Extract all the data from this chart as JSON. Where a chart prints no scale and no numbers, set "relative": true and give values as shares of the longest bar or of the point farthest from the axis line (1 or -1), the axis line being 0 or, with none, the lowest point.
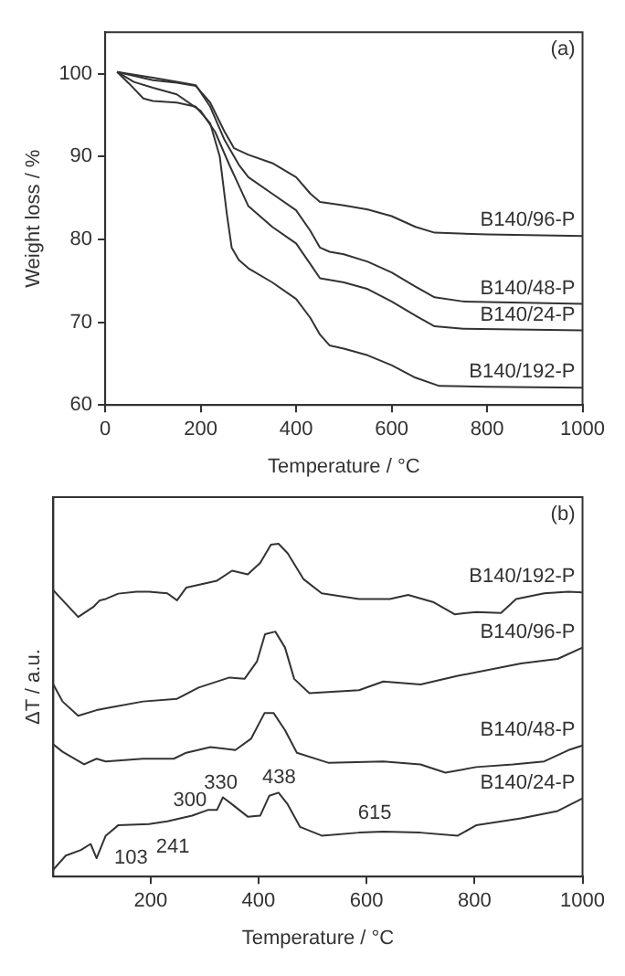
{
  "chart_data": [
    {
      "type": "line",
      "xlabel": "Temperature / °C",
      "ylabel": "Weight loss / %",
      "xlim": [
        0,
        1000
      ],
      "xticks": [
        0,
        200,
        400,
        600,
        800,
        1000
      ],
      "ylim": [
        60,
        105
      ],
      "yticks": [
        60,
        70,
        80,
        90,
        100
      ],
      "grid": false,
      "legend": false,
      "marker": "none",
      "annotations": [
        "(a)"
      ],
      "series": [
        {
          "name": "B140/96-P",
          "color": "#333333",
          "x": [
            25,
            100,
            150,
            190,
            220,
            250,
            270,
            300,
            350,
            400,
            430,
            450,
            500,
            550,
            600,
            650,
            690,
            800,
            1000
          ],
          "values": [
            100.2,
            99.2,
            98.9,
            98.5,
            96.5,
            93,
            91,
            90.2,
            89.2,
            87.5,
            85.5,
            84.5,
            84.1,
            83.6,
            82.8,
            81.5,
            80.8,
            80.6,
            80.4
          ]
        },
        {
          "name": "B140/48-P",
          "color": "#333333",
          "x": [
            25,
            100,
            150,
            190,
            220,
            250,
            280,
            300,
            350,
            400,
            430,
            450,
            470,
            500,
            550,
            600,
            650,
            690,
            750,
            1000
          ],
          "values": [
            100.2,
            99.5,
            99.0,
            98.6,
            96,
            92,
            89,
            87.5,
            85.5,
            83.5,
            81,
            79,
            78.5,
            78.2,
            77.3,
            76,
            74.3,
            73,
            72.5,
            72.2
          ]
        },
        {
          "name": "B140/24-P",
          "color": "#333333",
          "x": [
            25,
            60,
            100,
            150,
            200,
            230,
            260,
            300,
            350,
            400,
            430,
            450,
            500,
            550,
            600,
            650,
            690,
            750,
            1000
          ],
          "values": [
            100.2,
            99,
            98.3,
            97.5,
            95.5,
            93,
            89,
            84,
            81.5,
            79.5,
            77,
            75.3,
            74.8,
            74,
            72.5,
            70.8,
            69.5,
            69.2,
            69
          ]
        },
        {
          "name": "B140/192-P",
          "color": "#333333",
          "x": [
            25,
            50,
            80,
            100,
            150,
            190,
            220,
            240,
            255,
            265,
            280,
            300,
            350,
            400,
            430,
            450,
            470,
            500,
            550,
            600,
            650,
            700,
            800,
            1000
          ],
          "values": [
            100.2,
            98.8,
            97,
            96.7,
            96.5,
            96,
            94,
            90,
            83,
            79,
            77.5,
            76.5,
            74.8,
            72.8,
            70.5,
            68.5,
            67.2,
            66.8,
            66,
            64.8,
            63.3,
            62.3,
            62.2,
            62.1
          ]
        }
      ]
    },
    {
      "type": "line",
      "xlabel": "Temperature / °C",
      "ylabel": "ΔT / a.u.",
      "xlim": [
        20,
        1000
      ],
      "xticks": [
        200,
        400,
        600,
        800,
        1000
      ],
      "relative": true,
      "tick_labels": "x",
      "grid": false,
      "legend": false,
      "marker": "none",
      "annotations": [
        "(b)",
        {
          "text": "103",
          "x": 103,
          "y": 0.06
        },
        {
          "text": "241",
          "x": 241,
          "y": 0.166
        },
        {
          "text": "300",
          "x": 300,
          "y": 0.195
        },
        {
          "text": "330",
          "x": 330,
          "y": 0.238
        },
        {
          "text": "438",
          "x": 438,
          "y": 0.252
        },
        {
          "text": "615",
          "x": 615,
          "y": 0.135
        }
      ],
      "series": [
        {
          "name": "B140/192-P",
          "color": "#333333",
          "x": [
            20,
            66,
            94,
            106,
            117,
            140,
            174,
            197,
            231,
            249,
            266,
            323,
            351,
            380,
            403,
            423,
            437,
            454,
            483,
            517,
            586,
            643,
            677,
            723,
            763,
            803,
            849,
            877,
            929,
            974,
            1000
          ],
          "values": [
            0.86,
            0.78,
            0.81,
            0.83,
            0.834,
            0.85,
            0.856,
            0.856,
            0.851,
            0.83,
            0.868,
            0.889,
            0.919,
            0.908,
            0.942,
            0.997,
            1.0,
            0.971,
            0.894,
            0.851,
            0.834,
            0.834,
            0.846,
            0.825,
            0.788,
            0.795,
            0.792,
            0.834,
            0.851,
            0.856,
            0.854
          ]
        },
        {
          "name": "B140/96-P",
          "color": "#333333",
          "x": [
            20,
            37,
            66,
            100,
            129,
            186,
            249,
            289,
            346,
            374,
            397,
            412,
            431,
            449,
            466,
            494,
            586,
            631,
            700,
            769,
            886,
            954,
            1000
          ],
          "values": [
            0.577,
            0.526,
            0.483,
            0.5,
            0.509,
            0.526,
            0.534,
            0.568,
            0.598,
            0.594,
            0.646,
            0.728,
            0.736,
            0.688,
            0.594,
            0.551,
            0.56,
            0.586,
            0.577,
            0.603,
            0.64,
            0.654,
            0.688
          ]
        },
        {
          "name": "B140/48-P",
          "color": "#333333",
          "x": [
            20,
            37,
            77,
            100,
            117,
            186,
            243,
            266,
            311,
            357,
            386,
            411,
            428,
            449,
            471,
            529,
            631,
            700,
            746,
            803,
            871,
            929,
            974,
            1000
          ],
          "values": [
            0.397,
            0.375,
            0.337,
            0.354,
            0.346,
            0.354,
            0.354,
            0.372,
            0.389,
            0.38,
            0.414,
            0.491,
            0.491,
            0.44,
            0.372,
            0.342,
            0.346,
            0.337,
            0.312,
            0.329,
            0.337,
            0.346,
            0.38,
            0.394
          ]
        },
        {
          "name": "B140/24-P",
          "color": "#333333",
          "x": [
            20,
            43,
            71,
            89,
            100,
            117,
            140,
            197,
            231,
            277,
            306,
            323,
            334,
            351,
            380,
            403,
            420,
            437,
            454,
            477,
            517,
            586,
            631,
            700,
            769,
            803,
            886,
            954,
            1000
          ],
          "values": [
            0.021,
            0.063,
            0.08,
            0.098,
            0.055,
            0.123,
            0.154,
            0.158,
            0.166,
            0.183,
            0.2,
            0.2,
            0.238,
            0.217,
            0.18,
            0.183,
            0.243,
            0.252,
            0.217,
            0.149,
            0.123,
            0.132,
            0.135,
            0.132,
            0.123,
            0.154,
            0.175,
            0.197,
            0.235
          ]
        }
      ]
    }
  ]
}
